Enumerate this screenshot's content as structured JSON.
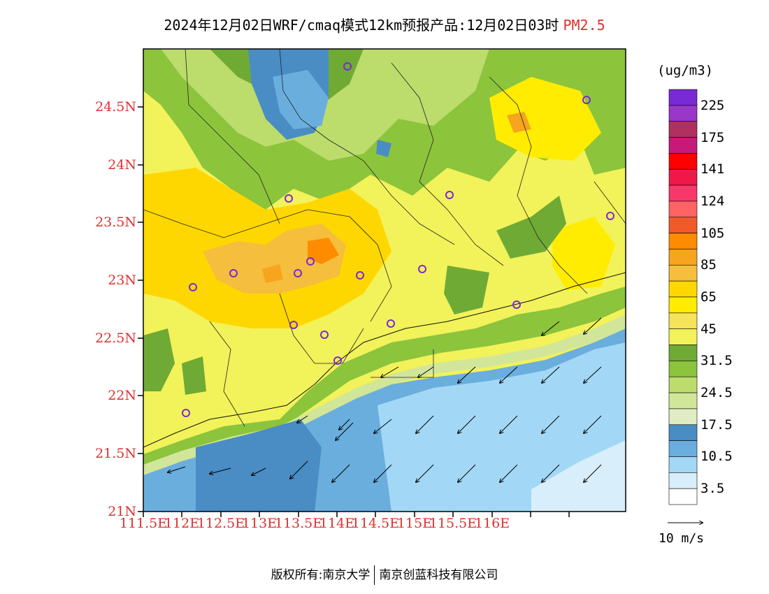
{
  "title": {
    "main": "2024年12月02日WRF/cmaq模式12km预报产品:12月02日03时",
    "pollutant": "PM2.5",
    "pollutant_color": "#e03030"
  },
  "map": {
    "lat_ticks": [
      "24.5N",
      "24N",
      "23.5N",
      "23N",
      "22.5N",
      "22N",
      "21.5N",
      "21N"
    ],
    "lon_ticks": [
      "111.5E",
      "112E",
      "112.5E",
      "113E",
      "113.5E",
      "114E",
      "114.5E",
      "115E",
      "115.5E",
      "116E"
    ],
    "tick_color": "#e03030"
  },
  "legend": {
    "unit": "(ug/m3)",
    "levels": [
      "225",
      "175",
      "141",
      "124",
      "105",
      "85",
      "65",
      "45",
      "31.5",
      "24.5",
      "17.5",
      "10.5",
      "3.5"
    ],
    "colors": [
      "#7a29d6",
      "#9a36c8",
      "#b03060",
      "#c81878",
      "#ff0000",
      "#f01848",
      "#f8386a",
      "#ff6464",
      "#f05a28",
      "#ff8c00",
      "#f7a41e",
      "#f5be3c",
      "#ffd700",
      "#ffec00",
      "#f5e35a",
      "#f2f25a",
      "#6faa35",
      "#8cc43c",
      "#bcdc6c",
      "#d2e69a",
      "#e0ecc4",
      "#4a8cc4",
      "#6aaede",
      "#a2d8f6",
      "#d8eefa",
      "#ffffff"
    ]
  },
  "wind_reference": {
    "label": "10 m/s",
    "icon": "right-arrow-icon"
  },
  "footer": {
    "left": "版权所有:南京大学",
    "right": "南京创蓝科技有限公司"
  }
}
